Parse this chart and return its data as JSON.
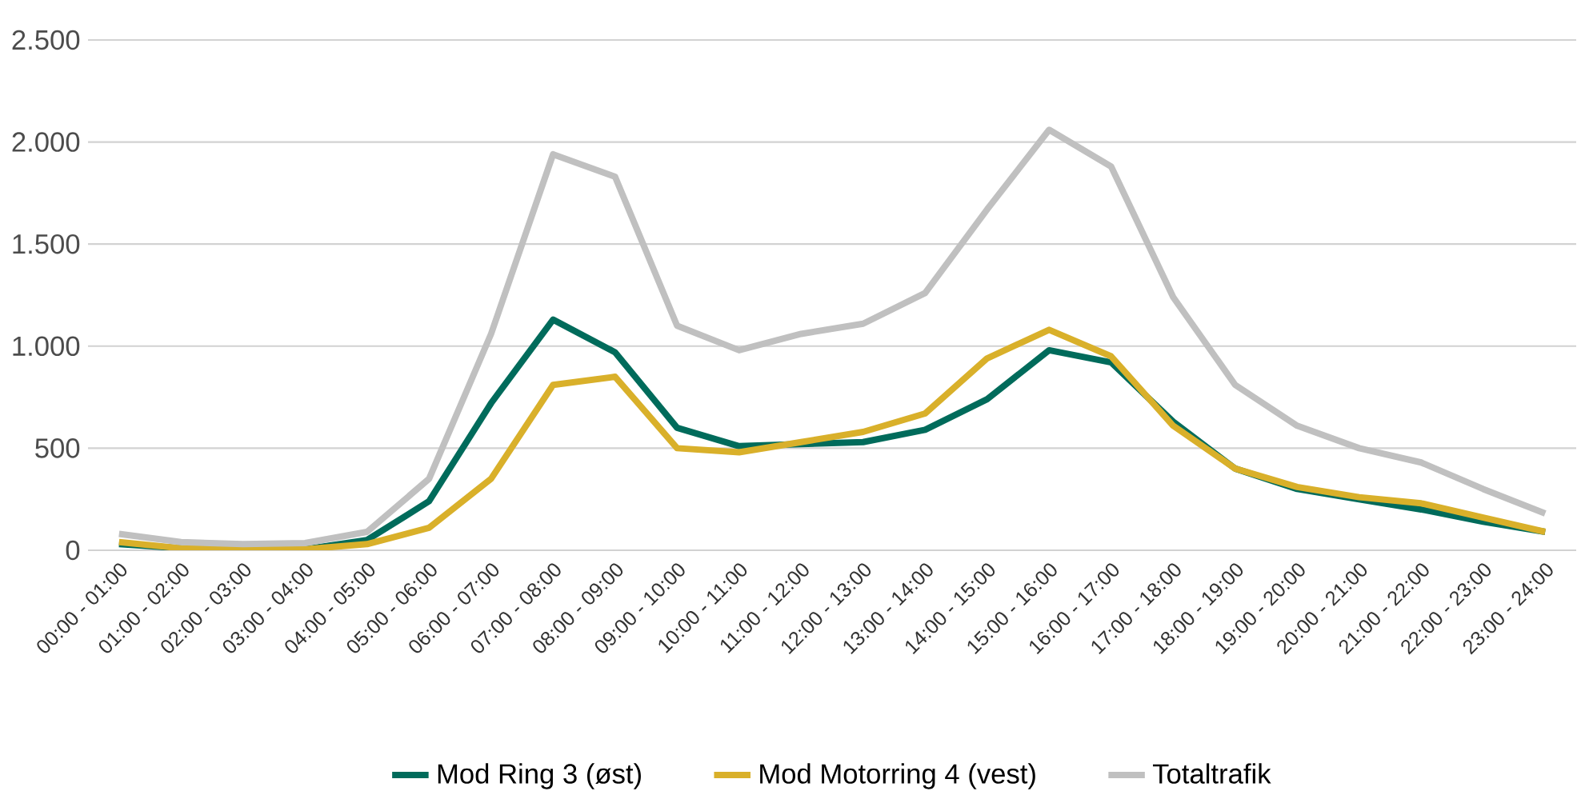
{
  "chart_data": {
    "type": "line",
    "categories": [
      "00:00 - 01:00",
      "01:00 - 02:00",
      "02:00 - 03:00",
      "03:00 - 04:00",
      "04:00 - 05:00",
      "05:00 - 06:00",
      "06:00 - 07:00",
      "07:00 - 08:00",
      "08:00 - 09:00",
      "09:00 - 10:00",
      "10:00 - 11:00",
      "11:00 - 12:00",
      "12:00 - 13:00",
      "13:00 - 14:00",
      "14:00 - 15:00",
      "15:00 - 16:00",
      "16:00 - 17:00",
      "17:00 - 18:00",
      "18:00 - 19:00",
      "19:00 - 20:00",
      "20:00 - 21:00",
      "21:00 - 22:00",
      "22:00 - 23:00",
      "23:00 - 24:00"
    ],
    "series": [
      {
        "name": "Mod Ring 3 (øst)",
        "color": "#006b5b",
        "values": [
          30,
          10,
          5,
          5,
          50,
          240,
          720,
          1130,
          970,
          600,
          510,
          520,
          530,
          590,
          740,
          980,
          920,
          630,
          400,
          300,
          250,
          200,
          140,
          90
        ]
      },
      {
        "name": "Mod Motorring 4 (vest)",
        "color": "#d9b02a",
        "values": [
          40,
          10,
          5,
          5,
          30,
          110,
          350,
          810,
          850,
          500,
          480,
          530,
          580,
          670,
          940,
          1080,
          950,
          610,
          400,
          310,
          260,
          230,
          160,
          90
        ]
      },
      {
        "name": "Totaltrafik",
        "color": "#c0c0c0",
        "values": [
          80,
          40,
          30,
          35,
          90,
          350,
          1060,
          1940,
          1830,
          1100,
          980,
          1060,
          1110,
          1260,
          1670,
          2060,
          1880,
          1240,
          810,
          610,
          500,
          430,
          300,
          180
        ]
      }
    ],
    "ylim": [
      0,
      2500
    ],
    "yticks": [
      0,
      500,
      {
        "value": 1000,
        "label": "1.000"
      },
      {
        "value": 1500,
        "label": "1.500"
      },
      {
        "value": 2000,
        "label": "2.000"
      },
      {
        "value": 2500,
        "label": "2.500"
      }
    ],
    "grid": "y",
    "legend": "bottom"
  }
}
